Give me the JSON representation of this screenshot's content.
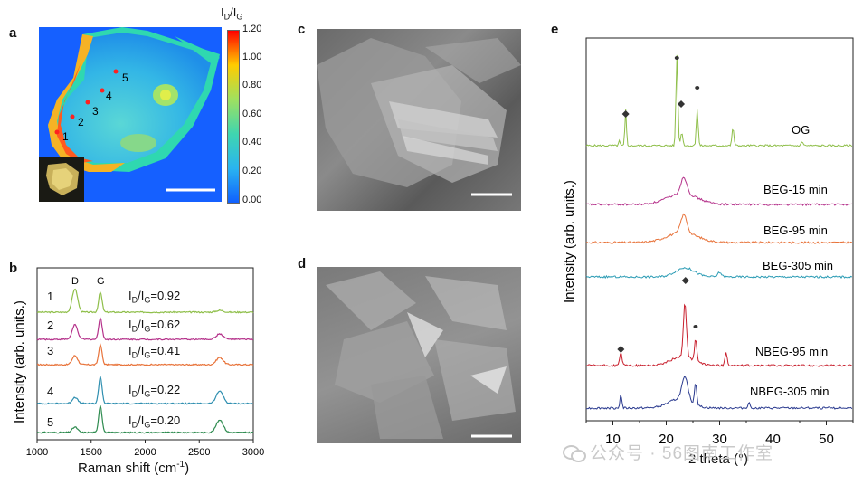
{
  "panels": {
    "a": {
      "letter": "a",
      "colorbar": {
        "title_main": "I",
        "title_sub1": "D",
        "title_slash": "/I",
        "title_sub2": "G",
        "ticks": [
          "1.20",
          "1.00",
          "0.80",
          "0.60",
          "0.40",
          "0.20",
          "0.00"
        ]
      },
      "points": [
        "1",
        "2",
        "3",
        "4",
        "5"
      ]
    },
    "b": {
      "letter": "b",
      "peak_labels": [
        "D",
        "G"
      ],
      "xlabel": "Raman shift (cm",
      "xlabel_sup": "-1",
      "xlabel_end": ")",
      "ylabel": "Intensity (arb. units.)",
      "xticks": [
        "1000",
        "1500",
        "2000",
        "2500",
        "3000"
      ],
      "spectra": [
        {
          "index": "1",
          "ratio": "=0.92",
          "color": "#8fbf4a"
        },
        {
          "index": "2",
          "ratio": "=0.62",
          "color": "#b5328b"
        },
        {
          "index": "3",
          "ratio": "=0.41",
          "color": "#e8733a"
        },
        {
          "index": "4",
          "ratio": "=0.22",
          "color": "#2f8fb0"
        },
        {
          "index": "5",
          "ratio": "=0.20",
          "color": "#2e8b4f"
        }
      ]
    },
    "c": {
      "letter": "c"
    },
    "d": {
      "letter": "d"
    },
    "e": {
      "letter": "e",
      "ylabel": "Intensity (arb. units.)",
      "xlabel": "2 theta (°)",
      "xticks": [
        "10",
        "20",
        "30",
        "40",
        "50"
      ],
      "curves": [
        {
          "name": "OG",
          "color": "#8fbf4a"
        },
        {
          "name": "BEG-15 min",
          "color": "#b5328b"
        },
        {
          "name": "BEG-95 min",
          "color": "#e8733a"
        },
        {
          "name": "BEG-305 min",
          "color": "#2a9bb4"
        },
        {
          "name": "NBEG-95 min",
          "color": "#c8202e"
        },
        {
          "name": "NBEG-305 min",
          "color": "#2a3a8f"
        }
      ]
    }
  },
  "watermark": {
    "text": "公众号 · 56图南工作室"
  }
}
